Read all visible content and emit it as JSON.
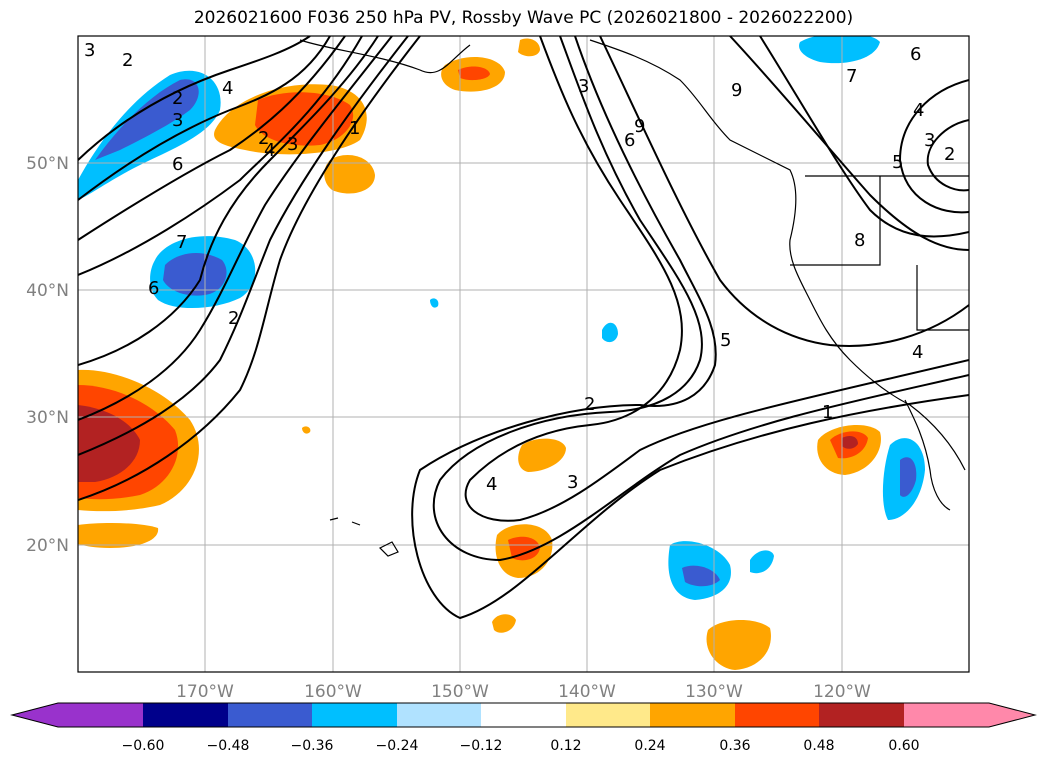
{
  "title": "2026021600 F036 250 hPa PV, Rossby Wave PC (2026021800 - 2026022200)",
  "map": {
    "projection": "equirectangular",
    "lon_range": [
      -180,
      -110
    ],
    "lat_range": [
      10,
      60
    ],
    "gridlines": true,
    "lat_labels": [
      "20°N",
      "30°N",
      "40°N",
      "50°N"
    ],
    "lon_labels": [
      "170°W",
      "160°W",
      "150°W",
      "140°W",
      "130°W",
      "120°W"
    ]
  },
  "colorbar": {
    "orientation": "horizontal",
    "extend": "both",
    "colors": [
      "#9932cc",
      "#00008b",
      "#3a5bd0",
      "#00bfff",
      "#b0e2ff",
      "#ffffff",
      "#ffe98a",
      "#ffa500",
      "#ff4500",
      "#b22222",
      "#ff88aa"
    ],
    "tick_labels": [
      "−0.60",
      "−0.48",
      "−0.36",
      "−0.24",
      "−0.12",
      "0.12",
      "0.24",
      "0.36",
      "0.48",
      "0.60"
    ]
  },
  "contour_labels": [
    "3",
    "2",
    "2",
    "3",
    "4",
    "6",
    "7",
    "6",
    "2",
    "3",
    "1",
    "2",
    "4",
    "3",
    "9",
    "6",
    "7",
    "9",
    "6",
    "4",
    "3",
    "2",
    "5",
    "8",
    "5",
    "4",
    "2",
    "3",
    "4",
    "1"
  ]
}
